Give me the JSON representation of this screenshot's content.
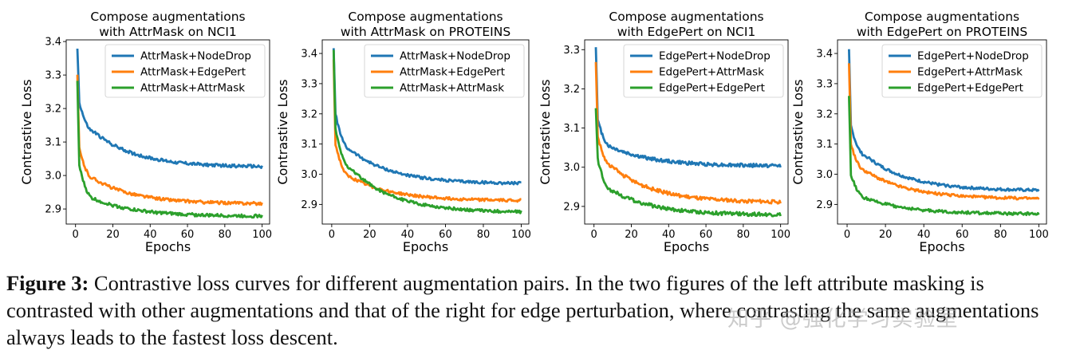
{
  "colors": {
    "blue": "#1f77b4",
    "orange": "#ff7f0e",
    "green": "#2ca02c"
  },
  "caption": {
    "label": "Figure 3:",
    "text": " Contrastive loss curves for different augmentation pairs. In the two figures of the left attribute masking is contrasted with other augmentations and that of the right for edge perturbation, where contrasting the same augmentations always leads to the fastest loss descent."
  },
  "watermark": "知乎 @强化学习实验室",
  "chart_data": [
    {
      "type": "line",
      "title": [
        "Compose augmentations",
        "with AttrMask on NCI1"
      ],
      "xlabel": "Epochs",
      "ylabel": "Contrastive Loss",
      "xlim": [
        -5,
        104
      ],
      "ylim": [
        2.855,
        3.405
      ],
      "xticks": [
        0,
        20,
        40,
        60,
        80,
        100
      ],
      "yticks": [
        2.9,
        3.0,
        3.1,
        3.2,
        3.3,
        3.4
      ],
      "legend": "top-right",
      "series": [
        {
          "name": "AttrMask+NodeDrop",
          "color": "blue",
          "start": 3.38,
          "at2": 3.22,
          "at10": 3.13,
          "end": 3.025,
          "k": 0.035
        },
        {
          "name": "AttrMask+EdgePert",
          "color": "orange",
          "start": 3.3,
          "at2": 3.08,
          "at10": 2.99,
          "end": 2.915,
          "k": 0.04
        },
        {
          "name": "AttrMask+AttrMask",
          "color": "green",
          "start": 3.28,
          "at2": 3.03,
          "at10": 2.93,
          "end": 2.878,
          "k": 0.06
        }
      ]
    },
    {
      "type": "line",
      "title": [
        "Compose augmentations",
        "with AttrMask on PROTEINS"
      ],
      "xlabel": "Epochs",
      "ylabel": "Contrastive Loss",
      "xlim": [
        -5,
        104
      ],
      "ylim": [
        2.835,
        3.445
      ],
      "xticks": [
        0,
        20,
        40,
        60,
        80,
        100
      ],
      "yticks": [
        2.9,
        3.0,
        3.1,
        3.2,
        3.3,
        3.4
      ],
      "legend": "top-right",
      "series": [
        {
          "name": "AttrMask+NodeDrop",
          "color": "blue",
          "start": 3.42,
          "at2": 3.2,
          "at10": 3.08,
          "end": 2.968,
          "k": 0.04
        },
        {
          "name": "AttrMask+EdgePert",
          "color": "orange",
          "start": 3.38,
          "at2": 3.1,
          "at10": 2.99,
          "end": 2.912,
          "k": 0.04
        },
        {
          "name": "AttrMask+AttrMask",
          "color": "green",
          "start": 3.41,
          "at2": 3.15,
          "at10": 3.02,
          "end": 2.873,
          "k": 0.045
        }
      ]
    },
    {
      "type": "line",
      "title": [
        "Compose augmentations",
        "with EdgePert on NCI1"
      ],
      "xlabel": "Epochs",
      "ylabel": "Contrastive Loss",
      "xlim": [
        -5,
        104
      ],
      "ylim": [
        2.855,
        3.325
      ],
      "xticks": [
        0,
        20,
        40,
        60,
        80,
        100
      ],
      "yticks": [
        2.9,
        3.0,
        3.1,
        3.2,
        3.3
      ],
      "legend": "top-right",
      "series": [
        {
          "name": "EdgePert+NodeDrop",
          "color": "blue",
          "start": 3.31,
          "at2": 3.12,
          "at10": 3.05,
          "end": 3.003,
          "k": 0.035
        },
        {
          "name": "EdgePert+AttrMask",
          "color": "orange",
          "start": 3.27,
          "at2": 3.08,
          "at10": 3.0,
          "end": 2.91,
          "k": 0.03
        },
        {
          "name": "EdgePert+EdgePert",
          "color": "green",
          "start": 3.15,
          "at2": 3.02,
          "at10": 2.94,
          "end": 2.878,
          "k": 0.06
        }
      ]
    },
    {
      "type": "line",
      "title": [
        "Compose augmentations",
        "with EdgePert on PROTEINS"
      ],
      "xlabel": "Epochs",
      "ylabel": "Contrastive Loss",
      "xlim": [
        -5,
        104
      ],
      "ylim": [
        2.835,
        3.445
      ],
      "xticks": [
        0,
        20,
        40,
        60,
        80,
        100
      ],
      "yticks": [
        2.9,
        3.0,
        3.1,
        3.2,
        3.3,
        3.4
      ],
      "legend": "top-right",
      "series": [
        {
          "name": "EdgePert+NodeDrop",
          "color": "blue",
          "start": 3.41,
          "at2": 3.16,
          "at10": 3.06,
          "end": 2.945,
          "k": 0.04
        },
        {
          "name": "EdgePert+AttrMask",
          "color": "orange",
          "start": 3.37,
          "at2": 3.1,
          "at10": 3.01,
          "end": 2.918,
          "k": 0.04
        },
        {
          "name": "EdgePert+EdgePert",
          "color": "green",
          "start": 3.26,
          "at2": 3.0,
          "at10": 2.92,
          "end": 2.868,
          "k": 0.07
        }
      ]
    }
  ]
}
